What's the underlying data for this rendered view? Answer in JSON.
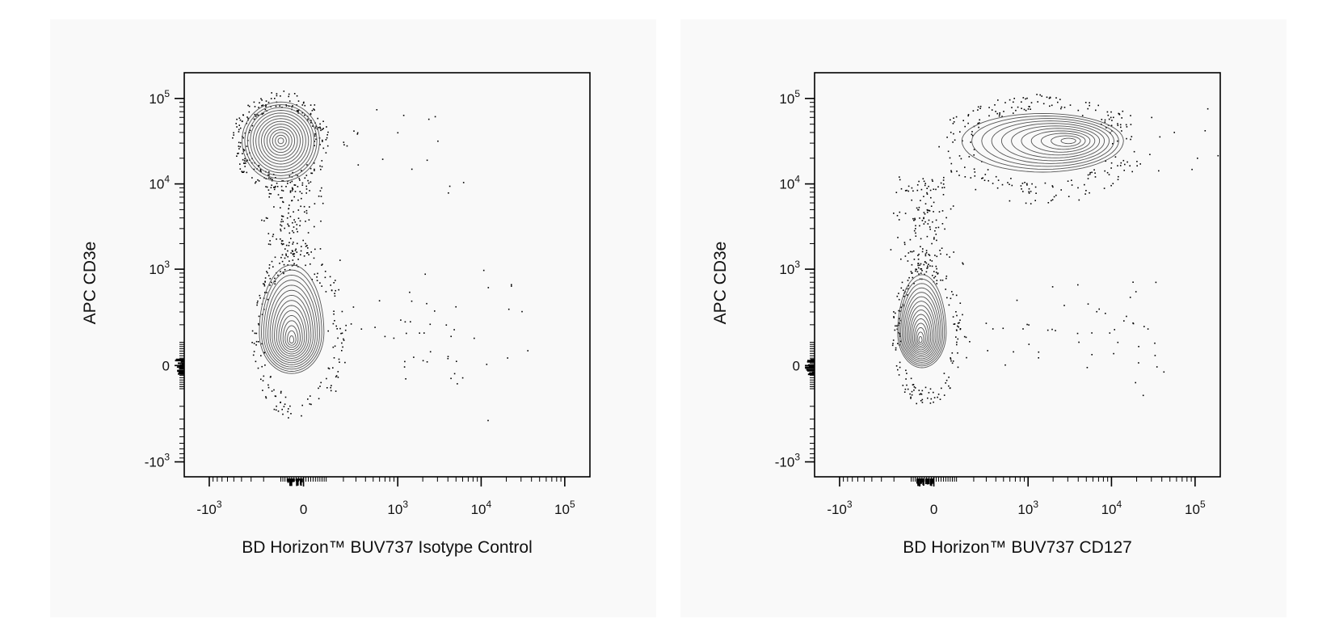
{
  "chart_data": [
    {
      "type": "scatter",
      "subtype": "flow-cytometry-contour-plot",
      "xlabel": "BD Horizon™ BUV737 Isotype Control",
      "ylabel": "APC CD3e",
      "x_scale": "biexponential",
      "y_scale": "biexponential",
      "xlim": [
        -2000,
        200000
      ],
      "ylim": [
        -1500,
        200000
      ],
      "x_ticks": [
        {
          "label": "-10",
          "exp": "3",
          "value": -1000
        },
        {
          "label": "0",
          "exp": "",
          "value": 0
        },
        {
          "label": "10",
          "exp": "3",
          "value": 1000
        },
        {
          "label": "10",
          "exp": "4",
          "value": 10000
        },
        {
          "label": "10",
          "exp": "5",
          "value": 100000
        }
      ],
      "y_ticks": [
        {
          "label": "-10",
          "exp": "3",
          "value": -1000
        },
        {
          "label": "0",
          "exp": "",
          "value": 0
        },
        {
          "label": "10",
          "exp": "3",
          "value": 1000
        },
        {
          "label": "10",
          "exp": "4",
          "value": 10000
        },
        {
          "label": "10",
          "exp": "5",
          "value": 100000
        }
      ],
      "populations": [
        {
          "description": "CD3e+ T cells",
          "center_x": -100,
          "center_y": 32000,
          "shape": "round"
        },
        {
          "description": "CD3e- cells",
          "center_x": -50,
          "center_y": 150,
          "shape": "vertical-oval"
        }
      ],
      "grid": false,
      "legend": "none"
    },
    {
      "type": "scatter",
      "subtype": "flow-cytometry-contour-plot",
      "xlabel": "BD Horizon™ BUV737 CD127",
      "ylabel": "APC CD3e",
      "x_scale": "biexponential",
      "y_scale": "biexponential",
      "xlim": [
        -2000,
        200000
      ],
      "ylim": [
        -1500,
        200000
      ],
      "x_ticks": [
        {
          "label": "-10",
          "exp": "3",
          "value": -1000
        },
        {
          "label": "0",
          "exp": "",
          "value": 0
        },
        {
          "label": "10",
          "exp": "3",
          "value": 1000
        },
        {
          "label": "10",
          "exp": "4",
          "value": 10000
        },
        {
          "label": "10",
          "exp": "5",
          "value": 100000
        }
      ],
      "y_ticks": [
        {
          "label": "-10",
          "exp": "3",
          "value": -1000
        },
        {
          "label": "0",
          "exp": "",
          "value": 0
        },
        {
          "label": "10",
          "exp": "3",
          "value": 1000
        },
        {
          "label": "10",
          "exp": "4",
          "value": 10000
        },
        {
          "label": "10",
          "exp": "5",
          "value": 100000
        }
      ],
      "populations": [
        {
          "description": "CD3e+ CD127+ T cells",
          "center_x": 1500,
          "center_y": 32000,
          "shape": "horizontal-oval"
        },
        {
          "description": "CD3e- cells",
          "center_x": -50,
          "center_y": 150,
          "shape": "vertical-oval"
        }
      ],
      "grid": false,
      "legend": "none"
    }
  ]
}
